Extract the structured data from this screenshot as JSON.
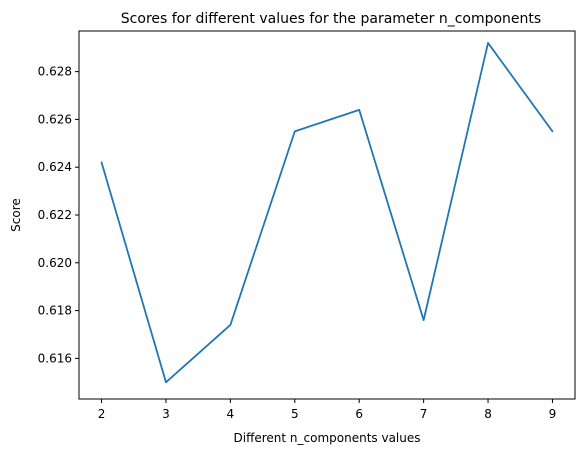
{
  "chart_data": {
    "type": "line",
    "title": "Scores for different values for the parameter n_components",
    "xlabel": "Different n_components values",
    "ylabel": "Score",
    "x": [
      2,
      3,
      4,
      5,
      6,
      7,
      8,
      9
    ],
    "series": [
      {
        "values": [
          0.6242,
          0.615,
          0.6174,
          0.6255,
          0.6264,
          0.6176,
          0.6292,
          0.6255
        ],
        "color": "#1f77b4"
      }
    ],
    "xlim": [
      1.65,
      9.35
    ],
    "ylim": [
      0.6143,
      0.6297
    ],
    "xticks": [
      2,
      3,
      4,
      5,
      6,
      7,
      8,
      9
    ],
    "xtick_labels": [
      "2",
      "3",
      "4",
      "5",
      "6",
      "7",
      "8",
      "9"
    ],
    "yticks": [
      0.616,
      0.618,
      0.62,
      0.622,
      0.624,
      0.626,
      0.628
    ],
    "ytick_labels": [
      "0.616",
      "0.618",
      "0.620",
      "0.622",
      "0.624",
      "0.626",
      "0.628"
    ],
    "grid": false,
    "legend": "none"
  }
}
